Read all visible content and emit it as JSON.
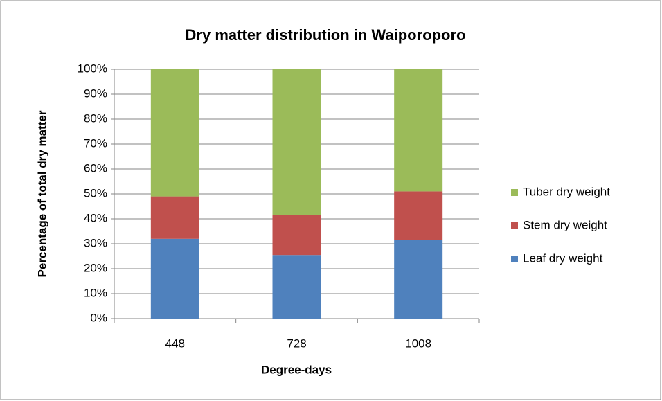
{
  "chart_data": {
    "type": "stacked_bar",
    "title": "Dry matter distribution in Waiporoporo",
    "x_label": "Degree-days",
    "y_label": "Percentage of total dry matter",
    "categories": [
      "448",
      "728",
      "1008"
    ],
    "series": [
      {
        "name": "Leaf dry weight",
        "color": "#4f81bd",
        "values": [
          32,
          25.5,
          31.5
        ]
      },
      {
        "name": "Stem dry weight",
        "color": "#c0504d",
        "values": [
          17,
          16,
          19.5
        ]
      },
      {
        "name": "Tuber dry weight",
        "color": "#9bbb59",
        "values": [
          51,
          58.5,
          49
        ]
      }
    ],
    "ylim": [
      0,
      100
    ],
    "yticks": [
      {
        "value": 0,
        "label": "0%"
      },
      {
        "value": 10,
        "label": "10%"
      },
      {
        "value": 20,
        "label": "20%"
      },
      {
        "value": 30,
        "label": "30%"
      },
      {
        "value": 40,
        "label": "40%"
      },
      {
        "value": 50,
        "label": "50%"
      },
      {
        "value": 60,
        "label": "60%"
      },
      {
        "value": 70,
        "label": "70%"
      },
      {
        "value": 80,
        "label": "80%"
      },
      {
        "value": 90,
        "label": "90%"
      },
      {
        "value": 100,
        "label": "100%"
      }
    ],
    "grid": true,
    "legend": "right"
  }
}
